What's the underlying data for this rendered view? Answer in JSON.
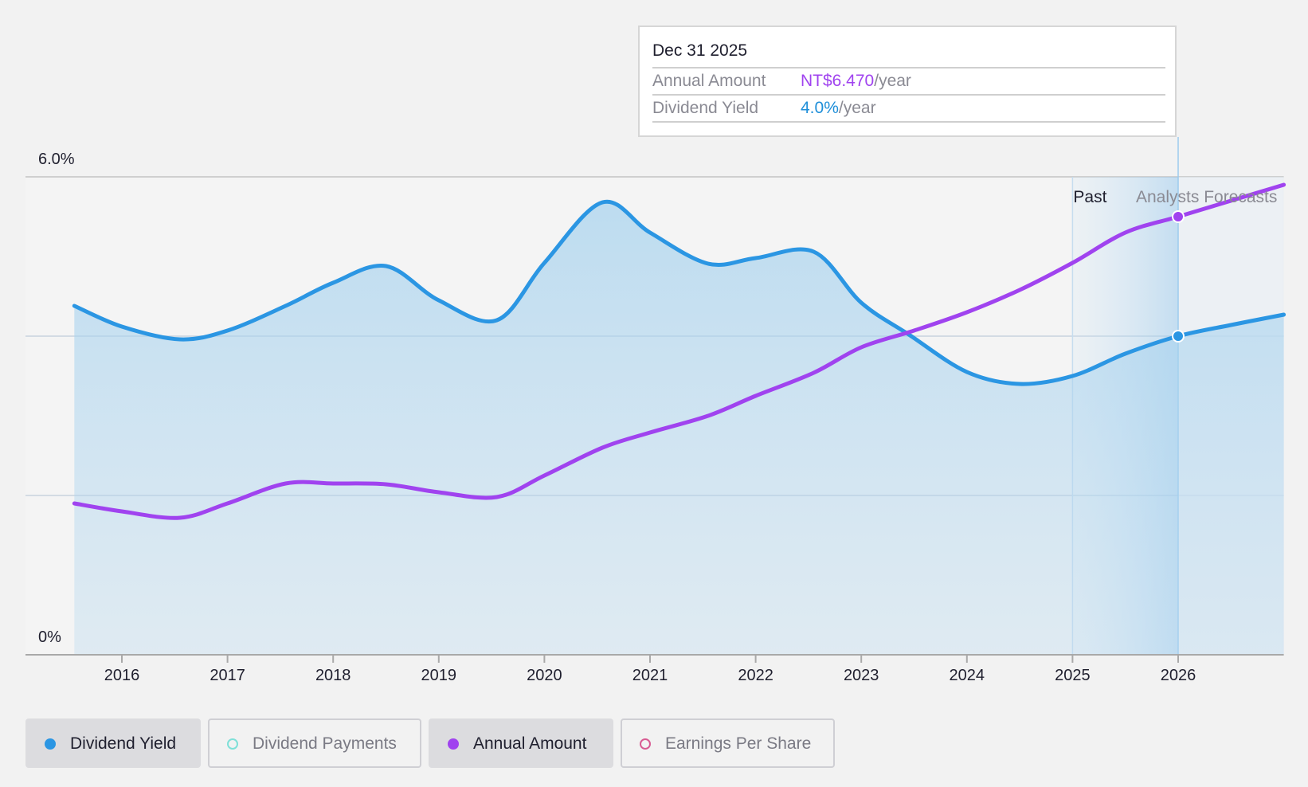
{
  "tooltip": {
    "date": "Dec 31 2025",
    "annual_amount_label": "Annual Amount",
    "annual_amount_value": "NT$6.470",
    "annual_amount_unit": "/year",
    "dividend_yield_label": "Dividend Yield",
    "dividend_yield_value": "4.0%",
    "dividend_yield_unit": "/year"
  },
  "regions": {
    "past": "Past",
    "forecast": "Analysts Forecasts"
  },
  "legend": {
    "dividend_yield": "Dividend Yield",
    "dividend_payments": "Dividend Payments",
    "annual_amount": "Annual Amount",
    "earnings_per_share": "Earnings Per Share"
  },
  "colors": {
    "dividend_yield": "#2b96e3",
    "annual_amount": "#a043ef",
    "dividend_payments": "#7fe0d8",
    "earnings_per_share": "#d85c93"
  },
  "chart_data": {
    "type": "line",
    "y_ticks": [
      "6.0%",
      "0%"
    ],
    "ylim": [
      0,
      6.0
    ],
    "x_ticks": [
      "2016",
      "2017",
      "2018",
      "2019",
      "2020",
      "2021",
      "2022",
      "2023",
      "2024",
      "2025",
      "2026"
    ],
    "xlim": [
      2015.35,
      2027.0
    ],
    "grid": true,
    "series": [
      {
        "name": "Dividend Yield",
        "unit": "%",
        "x": [
          2015.55,
          2016.0,
          2016.55,
          2017.0,
          2017.55,
          2018.0,
          2018.5,
          2019.0,
          2019.55,
          2020.0,
          2020.55,
          2021.0,
          2021.55,
          2022.0,
          2022.55,
          2023.0,
          2023.45,
          2024.0,
          2024.5,
          2025.0,
          2025.5,
          2026.0,
          2026.5,
          2027.0
        ],
        "values": [
          4.38,
          4.12,
          3.96,
          4.07,
          4.38,
          4.67,
          4.88,
          4.45,
          4.2,
          4.92,
          5.68,
          5.3,
          4.91,
          4.98,
          5.06,
          4.42,
          4.02,
          3.55,
          3.4,
          3.5,
          3.78,
          4.0,
          4.14,
          4.27
        ]
      },
      {
        "name": "Annual Amount",
        "x": [
          2015.55,
          2016.0,
          2016.55,
          2017.0,
          2017.55,
          2018.0,
          2018.5,
          2019.0,
          2019.55,
          2020.0,
          2020.55,
          2021.0,
          2021.55,
          2022.0,
          2022.55,
          2023.0,
          2023.5,
          2024.0,
          2024.5,
          2025.0,
          2025.5,
          2026.0,
          2026.5,
          2027.0
        ],
        "values": [
          1.9,
          1.8,
          1.72,
          1.9,
          2.15,
          2.15,
          2.14,
          2.04,
          1.98,
          2.25,
          2.6,
          2.79,
          3.0,
          3.25,
          3.54,
          3.86,
          4.07,
          4.3,
          4.58,
          4.92,
          5.3,
          5.5,
          5.7,
          5.9
        ]
      }
    ],
    "past_forecast_boundary": 2025.0,
    "highlight_x": 2026.0
  }
}
